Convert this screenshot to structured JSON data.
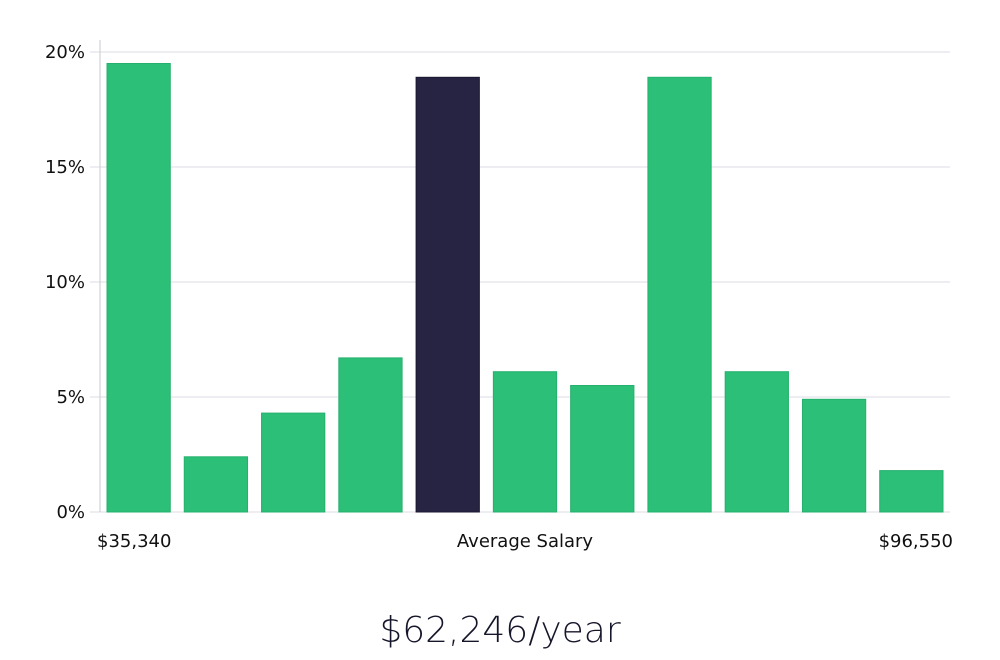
{
  "chart_data": {
    "type": "bar",
    "title": "",
    "xlabel": "Average Salary",
    "ylabel": "",
    "x_min_label": "$35,340",
    "x_max_label": "$96,550",
    "values": [
      19.5,
      2.4,
      4.3,
      6.7,
      18.9,
      6.1,
      5.5,
      18.9,
      6.1,
      4.9,
      1.8
    ],
    "highlight_index": 4,
    "ylim": [
      0,
      20
    ],
    "yticks": [
      0,
      5,
      10,
      15,
      20
    ],
    "ytick_labels": [
      "0%",
      "5%",
      "10%",
      "15%",
      "20%"
    ],
    "grid": true,
    "colors": {
      "bar": "#2bbf78",
      "highlight": "#272443"
    }
  },
  "summary": {
    "average_salary": "$62,246/year"
  }
}
